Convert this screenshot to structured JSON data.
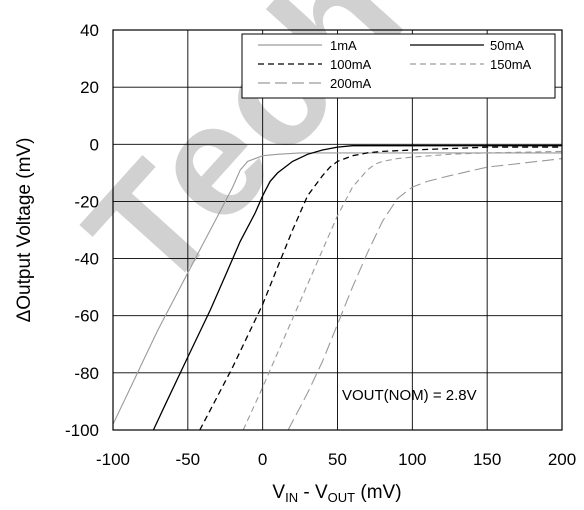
{
  "chart_data": {
    "type": "line",
    "xlabel": {
      "main": "V",
      "sub1": "IN",
      "mid": " - V",
      "sub2": "OUT",
      "unit": " (mV)"
    },
    "ylabel": "ΔOutput Voltage (mV)",
    "xlim": [
      -100,
      200
    ],
    "ylim": [
      -100,
      40
    ],
    "xticks": [
      -100,
      -50,
      0,
      50,
      100,
      150,
      200
    ],
    "yticks": [
      40,
      20,
      0,
      -20,
      -40,
      -60,
      -80,
      -100
    ],
    "grid": true,
    "legend_placement": "top-right",
    "annotation": "VOUT(NOM) = 2.8V",
    "watermark": "Tech",
    "series": [
      {
        "name": "1mA",
        "color": "#9a9a9a",
        "dash": "",
        "x": [
          -100,
          -90,
          -80,
          -70,
          -60,
          -50,
          -40,
          -30,
          -20,
          -15,
          -10,
          0,
          10,
          25,
          50,
          100,
          150,
          200
        ],
        "y": [
          -98,
          -87,
          -76,
          -65,
          -55,
          -45,
          -35,
          -25,
          -15,
          -9,
          -6,
          -4,
          -3.5,
          -3,
          -3,
          -3,
          -3,
          -3
        ]
      },
      {
        "name": "50mA",
        "color": "#000000",
        "dash": "",
        "x": [
          -73,
          -65,
          -55,
          -45,
          -35,
          -25,
          -15,
          -5,
          0,
          5,
          10,
          20,
          30,
          40,
          50,
          60,
          75,
          100,
          125,
          150,
          200
        ],
        "y": [
          -100,
          -91,
          -80,
          -69,
          -58,
          -46,
          -34,
          -24,
          -18,
          -13,
          -10,
          -6,
          -3.5,
          -2,
          -1,
          -0.5,
          -0.5,
          -0.5,
          -0.5,
          -0.5,
          -0.5
        ]
      },
      {
        "name": "100mA",
        "color": "#000000",
        "dash": "6,4",
        "x": [
          -42,
          -30,
          -20,
          -10,
          0,
          10,
          20,
          30,
          40,
          45,
          50,
          60,
          70,
          80,
          100,
          125,
          150,
          200
        ],
        "y": [
          -100,
          -88,
          -78,
          -67,
          -56,
          -43,
          -30,
          -18,
          -11,
          -8,
          -6,
          -4,
          -3,
          -2.5,
          -2,
          -1.5,
          -1,
          -1
        ]
      },
      {
        "name": "150mA",
        "color": "#9a9a9a",
        "dash": "6,4",
        "x": [
          -13,
          0,
          10,
          20,
          30,
          40,
          50,
          60,
          70,
          75,
          80,
          90,
          100,
          125,
          150,
          200
        ],
        "y": [
          -100,
          -85,
          -73,
          -61,
          -49,
          -37,
          -25,
          -15,
          -9,
          -7,
          -6,
          -5,
          -4.5,
          -3.5,
          -3,
          -2.5
        ]
      },
      {
        "name": "200mA",
        "color": "#9a9a9a",
        "dash": "12,5",
        "x": [
          17,
          30,
          40,
          50,
          60,
          70,
          80,
          90,
          100,
          110,
          125,
          150,
          175,
          200
        ],
        "y": [
          -100,
          -87,
          -76,
          -63,
          -50,
          -38,
          -27,
          -19,
          -15,
          -13,
          -11,
          -8,
          -6.5,
          -5
        ]
      }
    ]
  }
}
